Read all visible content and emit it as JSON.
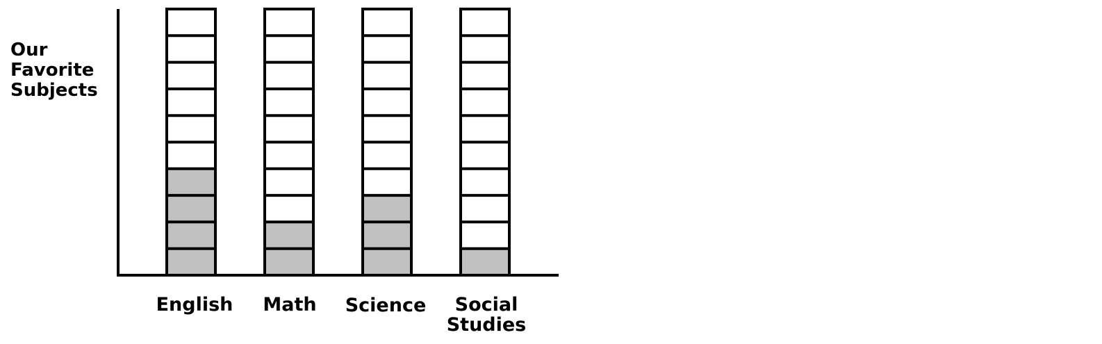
{
  "chart_data": {
    "type": "bar",
    "title_lines": [
      "Our",
      "Favorite",
      "Subjects"
    ],
    "categories": [
      {
        "lines": [
          "English"
        ]
      },
      {
        "lines": [
          "Math"
        ]
      },
      {
        "lines": [
          "Science"
        ]
      },
      {
        "lines": [
          "Social",
          "Studies"
        ]
      }
    ],
    "values": [
      4,
      2,
      3,
      1
    ],
    "cells_per_bar": 10,
    "ylim": [
      0,
      10
    ],
    "grid": false,
    "filled_color": "#c0c0c0",
    "empty_color": "#ffffff",
    "line_color": "#000000"
  }
}
